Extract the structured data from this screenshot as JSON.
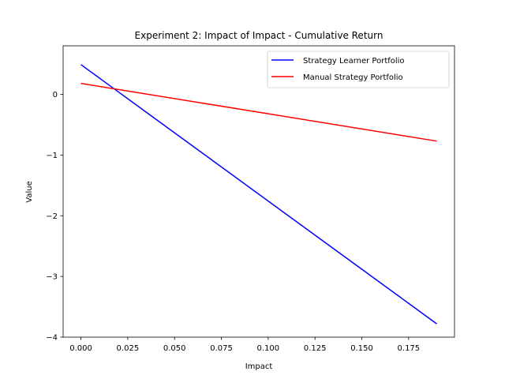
{
  "chart_data": {
    "type": "line",
    "title": "Experiment 2: Impact of Impact - Cumulative Return",
    "xlabel": "Impact",
    "ylabel": "Value",
    "xlim": [
      -0.0095,
      0.1995
    ],
    "ylim": [
      -4,
      0.8
    ],
    "x_ticks": [
      0.0,
      0.025,
      0.05,
      0.075,
      0.1,
      0.125,
      0.15,
      0.175
    ],
    "x_tick_labels": [
      "0.000",
      "0.025",
      "0.050",
      "0.075",
      "0.100",
      "0.125",
      "0.150",
      "0.175"
    ],
    "y_ticks": [
      0,
      -1,
      -2,
      -3,
      -4
    ],
    "y_tick_labels": [
      "0",
      "−1",
      "−2",
      "−3",
      "−4"
    ],
    "grid": false,
    "legend_position": "top-right",
    "series": [
      {
        "name": "Strategy Learner Portfolio",
        "color": "#0000ff",
        "x": [
          0.0,
          0.19
        ],
        "y": [
          0.49,
          -3.78
        ]
      },
      {
        "name": "Manual Strategy Portfolio",
        "color": "#ff0000",
        "x": [
          0.0,
          0.19
        ],
        "y": [
          0.18,
          -0.77
        ]
      }
    ]
  }
}
